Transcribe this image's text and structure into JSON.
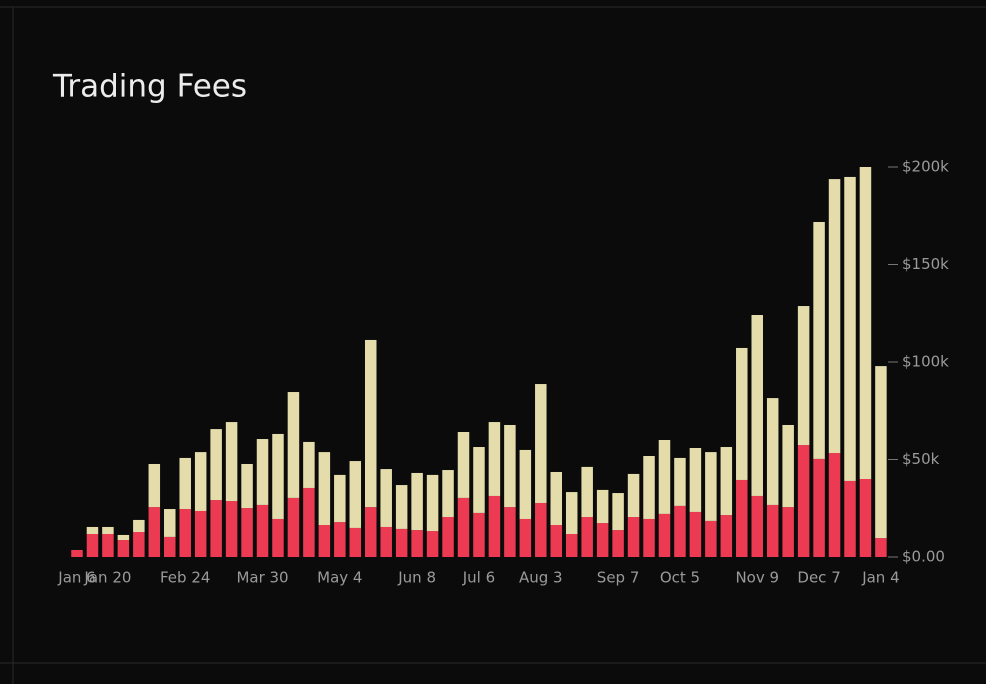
{
  "chart_data": {
    "type": "stacked-bar",
    "title": "Trading Fees",
    "categories": [
      "Jan 6",
      null,
      "Jan 20",
      null,
      null,
      null,
      null,
      "Feb 24",
      null,
      null,
      null,
      null,
      "Mar 30",
      null,
      null,
      null,
      null,
      "May 4",
      null,
      null,
      null,
      null,
      "Jun 8",
      null,
      null,
      null,
      "Jul 6",
      null,
      null,
      null,
      "Aug 3",
      null,
      null,
      null,
      null,
      "Sep 7",
      null,
      null,
      null,
      "Oct 5",
      null,
      null,
      null,
      null,
      "Nov 9",
      null,
      null,
      null,
      "Dec 7",
      null,
      null,
      null,
      "Jan 4"
    ],
    "series": [
      {
        "color": "#ec3a52",
        "values": [
          3.6,
          11.8,
          11.8,
          8.7,
          12.8,
          25.6,
          10.3,
          24.6,
          23.6,
          29.2,
          28.7,
          25.1,
          26.7,
          19.5,
          30.3,
          35.4,
          16.4,
          17.9,
          14.9,
          25.6,
          15.4,
          14.4,
          13.8,
          13.3,
          20.5,
          30.3,
          22.6,
          31.3,
          25.6,
          19.5,
          27.7,
          16.4,
          11.8,
          20.5,
          17.4,
          13.8,
          20.5,
          19.5,
          22.1,
          26.2,
          23.1,
          18.5,
          21.5,
          39.5,
          31.3,
          26.7,
          25.6,
          57.4,
          50.3,
          53.3,
          39,
          40,
          9.7
        ]
      },
      {
        "color": "#e4dcaa",
        "values": [
          0,
          3.6,
          3.6,
          2.6,
          6.2,
          22.1,
          14.3,
          26.2,
          30.2,
          36.4,
          40.5,
          22.6,
          33.8,
          43.6,
          54.3,
          23.6,
          37.4,
          24.2,
          34.3,
          85.7,
          29.7,
          22.5,
          29.3,
          28.8,
          24.1,
          33.8,
          33.8,
          37.9,
          42.1,
          35.4,
          61,
          27.2,
          21.5,
          25.7,
          17,
          19,
          22.1,
          32.3,
          37.9,
          24.6,
          32.8,
          35.3,
          34.9,
          67.7,
          92.8,
          54.8,
          42.1,
          71.3,
          121.5,
          140.5,
          155.9,
          160,
          88.2
        ]
      }
    ],
    "ylim": [
      0,
      200
    ],
    "yticks": [
      {
        "value": 0,
        "label": "$0.00"
      },
      {
        "value": 50,
        "label": "$50k"
      },
      {
        "value": 100,
        "label": "$100k"
      },
      {
        "value": 150,
        "label": "$150k"
      },
      {
        "value": 200,
        "label": "$200k"
      }
    ]
  }
}
